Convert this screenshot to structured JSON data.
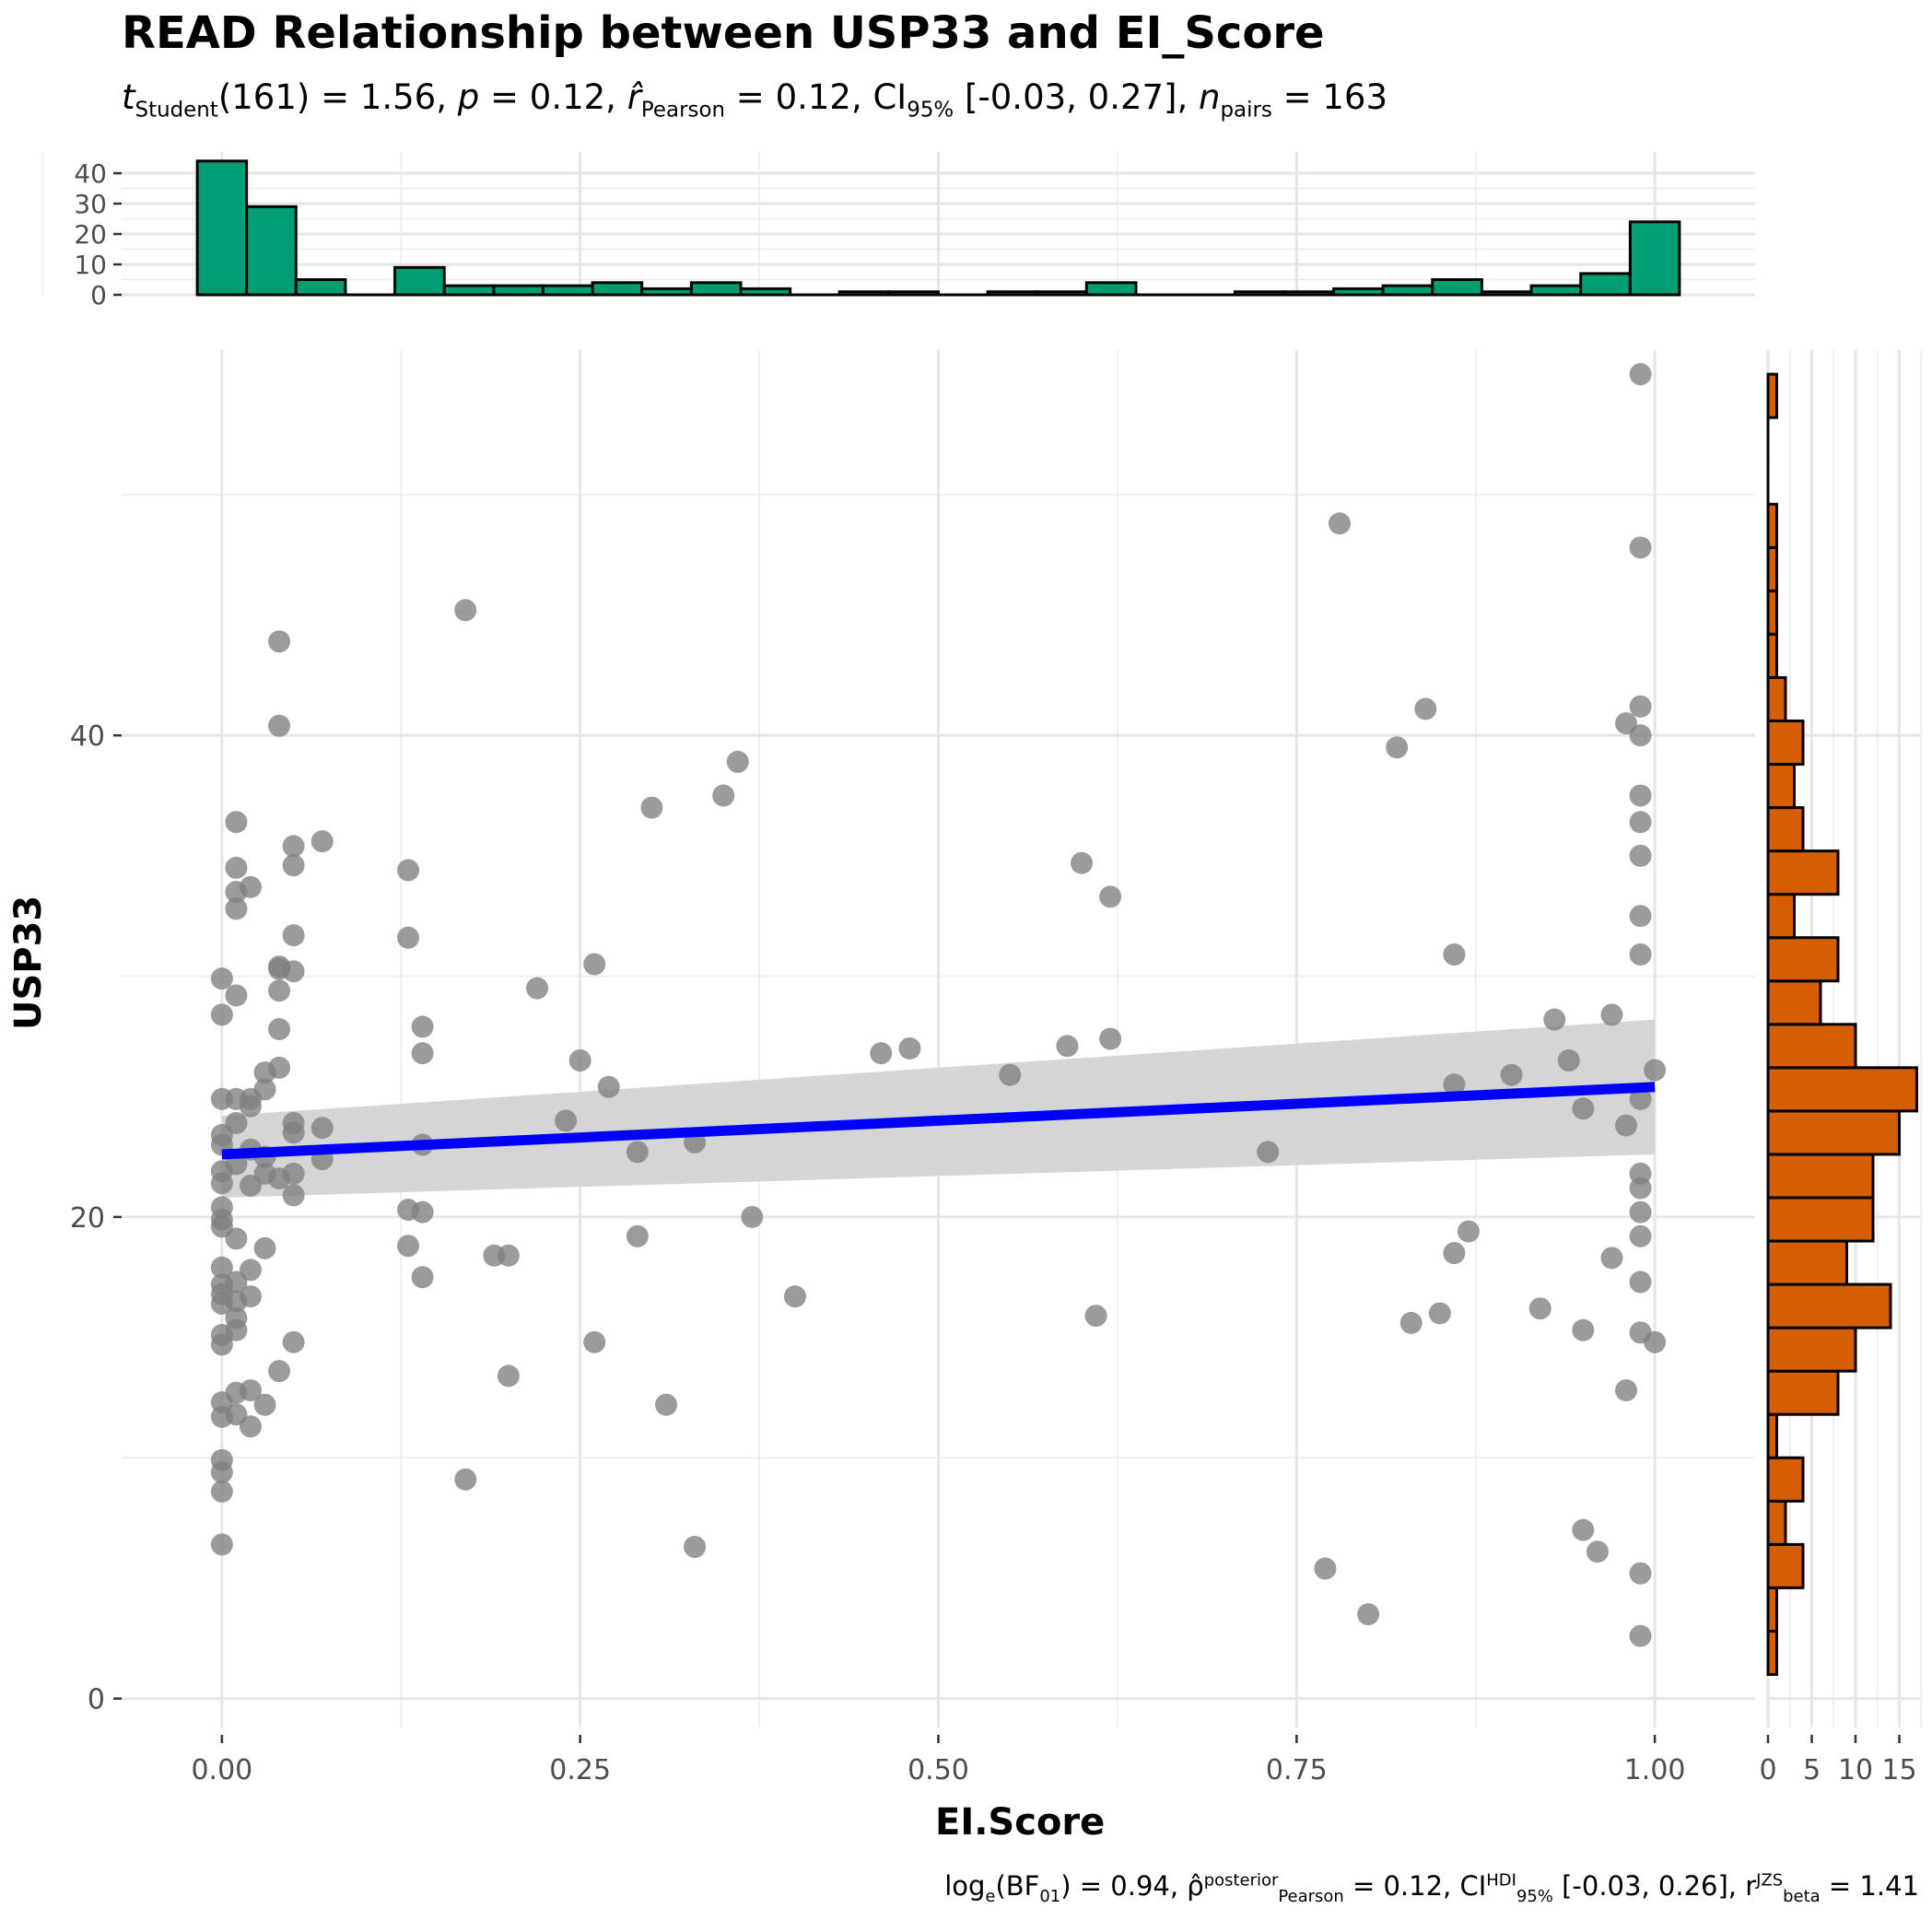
{
  "title": "READ Relationship between USP33 and EI_Score",
  "subtitle": {
    "t_label": "t",
    "t_sub": "Student",
    "t_value": "(161) = 1.56,",
    "p_label": "p",
    "p_value": " = 0.12,",
    "r_label": "r̂",
    "r_sub": "Pearson",
    "r_value": " = 0.12, CI",
    "ci_sub": "95%",
    "ci_value": " [-0.03, 0.27],",
    "n_label": "n",
    "n_sub": "pairs",
    "n_value": " = 163"
  },
  "caption": {
    "part1": "log",
    "sub1": "e",
    "part2": "(BF",
    "sub2": "01",
    "part3": ") = 0.94, ρ̂",
    "sup3": "posterior",
    "sub3": "Pearson",
    "part4": " = 0.12, CI",
    "sup4": "HDI",
    "sub4": "95%",
    "part5": " [-0.03, 0.26], r",
    "sup5": "JZS",
    "sub5": "beta",
    "part6": " = 1.41"
  },
  "colors": {
    "top_histogram": "#009E73",
    "right_histogram": "#D55E00",
    "regression_line": "#0000FF",
    "confidence_band": "#D3D3D3",
    "points": "#7F7F7F"
  },
  "chart_data": {
    "type": "scatter",
    "title": "READ Relationship between USP33 and EI_Score",
    "xlabel": "EI.Score",
    "ylabel": "USP33",
    "xlim": [
      -0.07,
      1.07
    ],
    "ylim": [
      -1.2,
      56
    ],
    "x_ticks": [
      "0.00",
      "0.25",
      "0.50",
      "0.75",
      "1.00"
    ],
    "y_ticks": [
      "0",
      "20",
      "40"
    ],
    "grid": true,
    "regression": {
      "x": [
        0,
        1
      ],
      "y": [
        22.6,
        25.4
      ],
      "ci_lower": [
        20.8,
        22.6
      ],
      "ci_upper": [
        24.2,
        28.2
      ]
    },
    "points": [
      [
        0.99,
        55.0
      ],
      [
        0.78,
        48.8
      ],
      [
        0.99,
        47.8
      ],
      [
        0.17,
        45.2
      ],
      [
        0.04,
        43.9
      ],
      [
        0.84,
        41.1
      ],
      [
        0.99,
        41.2
      ],
      [
        0.04,
        40.4
      ],
      [
        0.98,
        40.5
      ],
      [
        0.99,
        40.0
      ],
      [
        0.82,
        39.5
      ],
      [
        0.36,
        38.9
      ],
      [
        0.35,
        37.5
      ],
      [
        0.3,
        37.0
      ],
      [
        0.99,
        37.5
      ],
      [
        0.01,
        36.4
      ],
      [
        0.99,
        36.4
      ],
      [
        0.07,
        35.6
      ],
      [
        0.05,
        35.4
      ],
      [
        0.99,
        35.0
      ],
      [
        0.6,
        34.7
      ],
      [
        0.05,
        34.6
      ],
      [
        0.01,
        34.5
      ],
      [
        0.13,
        34.4
      ],
      [
        0.02,
        33.7
      ],
      [
        0.01,
        33.5
      ],
      [
        0.62,
        33.3
      ],
      [
        0.01,
        32.8
      ],
      [
        0.99,
        32.5
      ],
      [
        0.05,
        31.7
      ],
      [
        0.13,
        31.6
      ],
      [
        0.86,
        30.9
      ],
      [
        0.99,
        30.9
      ],
      [
        0.26,
        30.5
      ],
      [
        0.04,
        30.4
      ],
      [
        0.05,
        30.2
      ],
      [
        0.04,
        30.3
      ],
      [
        0.0,
        29.9
      ],
      [
        0.22,
        29.5
      ],
      [
        0.04,
        29.4
      ],
      [
        0.01,
        29.2
      ],
      [
        0.0,
        28.4
      ],
      [
        0.97,
        28.4
      ],
      [
        0.93,
        28.2
      ],
      [
        0.14,
        27.9
      ],
      [
        0.04,
        27.8
      ],
      [
        0.62,
        27.4
      ],
      [
        0.59,
        27.1
      ],
      [
        0.48,
        27.0
      ],
      [
        0.46,
        26.8
      ],
      [
        0.14,
        26.8
      ],
      [
        0.25,
        26.5
      ],
      [
        0.94,
        26.5
      ],
      [
        0.04,
        26.2
      ],
      [
        0.03,
        26.0
      ],
      [
        0.55,
        25.9
      ],
      [
        0.9,
        25.9
      ],
      [
        1.0,
        26.1
      ],
      [
        0.86,
        25.5
      ],
      [
        0.27,
        25.4
      ],
      [
        0.03,
        25.3
      ],
      [
        0.02,
        24.9
      ],
      [
        0.02,
        24.6
      ],
      [
        0.01,
        24.9
      ],
      [
        0.0,
        24.9
      ],
      [
        0.99,
        24.9
      ],
      [
        0.95,
        24.5
      ],
      [
        0.24,
        24.0
      ],
      [
        0.05,
        23.9
      ],
      [
        0.01,
        23.9
      ],
      [
        0.98,
        23.8
      ],
      [
        0.07,
        23.7
      ],
      [
        0.05,
        23.5
      ],
      [
        0.0,
        23.4
      ],
      [
        0.33,
        23.1
      ],
      [
        0.14,
        23.0
      ],
      [
        0.02,
        22.8
      ],
      [
        0.0,
        23.0
      ],
      [
        0.73,
        22.7
      ],
      [
        0.29,
        22.7
      ],
      [
        0.03,
        22.5
      ],
      [
        0.07,
        22.4
      ],
      [
        0.01,
        22.2
      ],
      [
        0.0,
        21.9
      ],
      [
        0.05,
        21.8
      ],
      [
        0.03,
        21.8
      ],
      [
        0.04,
        21.6
      ],
      [
        0.99,
        21.8
      ],
      [
        0.0,
        21.4
      ],
      [
        0.02,
        21.3
      ],
      [
        0.99,
        21.2
      ],
      [
        0.05,
        20.9
      ],
      [
        0.0,
        20.4
      ],
      [
        0.13,
        20.3
      ],
      [
        0.14,
        20.2
      ],
      [
        0.99,
        20.2
      ],
      [
        0.37,
        20.0
      ],
      [
        0.0,
        19.9
      ],
      [
        0.0,
        19.6
      ],
      [
        0.87,
        19.4
      ],
      [
        0.29,
        19.2
      ],
      [
        0.01,
        19.1
      ],
      [
        0.99,
        19.2
      ],
      [
        0.13,
        18.8
      ],
      [
        0.03,
        18.7
      ],
      [
        0.19,
        18.4
      ],
      [
        0.2,
        18.4
      ],
      [
        0.86,
        18.5
      ],
      [
        0.97,
        18.3
      ],
      [
        0.0,
        17.9
      ],
      [
        0.02,
        17.8
      ],
      [
        0.14,
        17.5
      ],
      [
        0.01,
        17.3
      ],
      [
        0.0,
        17.2
      ],
      [
        0.99,
        17.3
      ],
      [
        0.0,
        16.8
      ],
      [
        0.02,
        16.7
      ],
      [
        0.01,
        16.5
      ],
      [
        0.4,
        16.7
      ],
      [
        0.0,
        16.4
      ],
      [
        0.61,
        15.9
      ],
      [
        0.85,
        16.0
      ],
      [
        0.92,
        16.2
      ],
      [
        0.01,
        15.8
      ],
      [
        0.83,
        15.6
      ],
      [
        0.01,
        15.3
      ],
      [
        0.95,
        15.3
      ],
      [
        0.0,
        15.1
      ],
      [
        0.99,
        15.2
      ],
      [
        0.26,
        14.8
      ],
      [
        0.05,
        14.8
      ],
      [
        1.0,
        14.8
      ],
      [
        0.0,
        14.7
      ],
      [
        0.04,
        13.6
      ],
      [
        0.2,
        13.4
      ],
      [
        0.98,
        12.8
      ],
      [
        0.01,
        12.7
      ],
      [
        0.02,
        12.8
      ],
      [
        0.0,
        12.3
      ],
      [
        0.03,
        12.2
      ],
      [
        0.31,
        12.2
      ],
      [
        0.01,
        11.8
      ],
      [
        0.0,
        11.7
      ],
      [
        0.02,
        11.3
      ],
      [
        0.0,
        9.9
      ],
      [
        0.0,
        9.4
      ],
      [
        0.17,
        9.1
      ],
      [
        0.0,
        8.6
      ],
      [
        0.95,
        7.0
      ],
      [
        0.33,
        6.3
      ],
      [
        0.0,
        6.4
      ],
      [
        0.96,
        6.1
      ],
      [
        0.77,
        5.4
      ],
      [
        0.99,
        5.2
      ],
      [
        0.8,
        3.5
      ],
      [
        0.99,
        2.6
      ]
    ],
    "top_histogram": {
      "y_ticks": [
        "0",
        "10",
        "20",
        "30",
        "40"
      ],
      "bins": [
        {
          "x0": -0.0172,
          "x1": 0.0172,
          "count": 44
        },
        {
          "x0": 0.0172,
          "x1": 0.0517,
          "count": 29
        },
        {
          "x0": 0.0517,
          "x1": 0.0862,
          "count": 5
        },
        {
          "x0": 0.0862,
          "x1": 0.1207,
          "count": 0
        },
        {
          "x0": 0.1207,
          "x1": 0.1552,
          "count": 9
        },
        {
          "x0": 0.1552,
          "x1": 0.1897,
          "count": 3
        },
        {
          "x0": 0.1897,
          "x1": 0.2241,
          "count": 3
        },
        {
          "x0": 0.2241,
          "x1": 0.2586,
          "count": 3
        },
        {
          "x0": 0.2586,
          "x1": 0.2931,
          "count": 4
        },
        {
          "x0": 0.2931,
          "x1": 0.3276,
          "count": 2
        },
        {
          "x0": 0.3276,
          "x1": 0.3621,
          "count": 4
        },
        {
          "x0": 0.3621,
          "x1": 0.3966,
          "count": 2
        },
        {
          "x0": 0.3966,
          "x1": 0.431,
          "count": 0
        },
        {
          "x0": 0.431,
          "x1": 0.4655,
          "count": 1
        },
        {
          "x0": 0.4655,
          "x1": 0.5,
          "count": 1
        },
        {
          "x0": 0.5,
          "x1": 0.5345,
          "count": 0
        },
        {
          "x0": 0.5345,
          "x1": 0.569,
          "count": 1
        },
        {
          "x0": 0.569,
          "x1": 0.6034,
          "count": 1
        },
        {
          "x0": 0.6034,
          "x1": 0.6379,
          "count": 4
        },
        {
          "x0": 0.6379,
          "x1": 0.6724,
          "count": 0
        },
        {
          "x0": 0.6724,
          "x1": 0.7069,
          "count": 0
        },
        {
          "x0": 0.7069,
          "x1": 0.7414,
          "count": 1
        },
        {
          "x0": 0.7414,
          "x1": 0.7759,
          "count": 1
        },
        {
          "x0": 0.7759,
          "x1": 0.8103,
          "count": 2
        },
        {
          "x0": 0.8103,
          "x1": 0.8448,
          "count": 3
        },
        {
          "x0": 0.8448,
          "x1": 0.8793,
          "count": 5
        },
        {
          "x0": 0.8793,
          "x1": 0.9138,
          "count": 1
        },
        {
          "x0": 0.9138,
          "x1": 0.9483,
          "count": 3
        },
        {
          "x0": 0.9483,
          "x1": 0.9828,
          "count": 7
        },
        {
          "x0": 0.9828,
          "x1": 1.0172,
          "count": 24
        }
      ]
    },
    "right_histogram": {
      "x_ticks": [
        "0",
        "5",
        "10",
        "15"
      ],
      "bins": [
        {
          "y0": 1.0,
          "y1": 2.8,
          "count": 1
        },
        {
          "y0": 2.8,
          "y1": 4.6,
          "count": 1
        },
        {
          "y0": 4.6,
          "y1": 6.4,
          "count": 4
        },
        {
          "y0": 6.4,
          "y1": 8.2,
          "count": 2
        },
        {
          "y0": 8.2,
          "y1": 10.0,
          "count": 4
        },
        {
          "y0": 10.0,
          "y1": 11.8,
          "count": 1
        },
        {
          "y0": 11.8,
          "y1": 13.6,
          "count": 8
        },
        {
          "y0": 13.6,
          "y1": 15.4,
          "count": 10
        },
        {
          "y0": 15.4,
          "y1": 17.2,
          "count": 14
        },
        {
          "y0": 17.2,
          "y1": 19.0,
          "count": 9
        },
        {
          "y0": 19.0,
          "y1": 20.8,
          "count": 12
        },
        {
          "y0": 20.8,
          "y1": 22.6,
          "count": 12
        },
        {
          "y0": 22.6,
          "y1": 24.4,
          "count": 15
        },
        {
          "y0": 24.4,
          "y1": 26.2,
          "count": 17
        },
        {
          "y0": 26.2,
          "y1": 28.0,
          "count": 10
        },
        {
          "y0": 28.0,
          "y1": 29.8,
          "count": 6
        },
        {
          "y0": 29.8,
          "y1": 31.6,
          "count": 8
        },
        {
          "y0": 31.6,
          "y1": 33.4,
          "count": 3
        },
        {
          "y0": 33.4,
          "y1": 35.2,
          "count": 8
        },
        {
          "y0": 35.2,
          "y1": 37.0,
          "count": 4
        },
        {
          "y0": 37.0,
          "y1": 38.8,
          "count": 3
        },
        {
          "y0": 38.8,
          "y1": 40.6,
          "count": 4
        },
        {
          "y0": 40.6,
          "y1": 42.4,
          "count": 2
        },
        {
          "y0": 42.4,
          "y1": 44.2,
          "count": 1
        },
        {
          "y0": 44.2,
          "y1": 46.0,
          "count": 1
        },
        {
          "y0": 46.0,
          "y1": 47.8,
          "count": 1
        },
        {
          "y0": 47.8,
          "y1": 49.6,
          "count": 1
        },
        {
          "y0": 49.6,
          "y1": 51.4,
          "count": 0
        },
        {
          "y0": 51.4,
          "y1": 53.2,
          "count": 0
        },
        {
          "y0": 53.2,
          "y1": 55.0,
          "count": 1
        }
      ]
    }
  }
}
